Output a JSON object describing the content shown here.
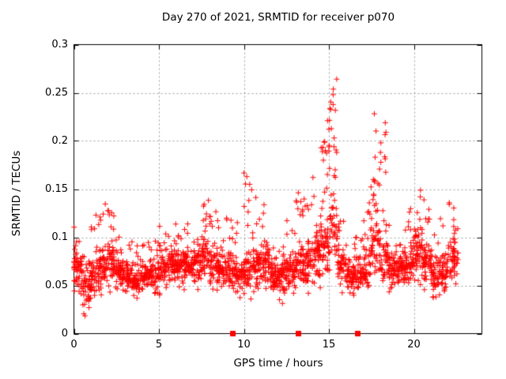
{
  "window": {
    "background": "#ffffff",
    "kind": "gnuplot-scatter-figure"
  },
  "chart_data": {
    "type": "scatter",
    "title": "Day 270 of 2021, SRMTID for receiver p070",
    "xlabel": "GPS time / hours",
    "ylabel": "SRMTID / TECUs",
    "xlim": [
      0,
      24
    ],
    "ylim": [
      0,
      0.3
    ],
    "xticks": [
      0,
      5,
      10,
      15,
      20
    ],
    "xtick_labels": [
      "0",
      "5",
      "10",
      "15",
      "20"
    ],
    "yticks": [
      0,
      0.05,
      0.1,
      0.15,
      0.2,
      0.25,
      0.3
    ],
    "ytick_labels": [
      "0",
      "0.05",
      "0.1",
      "0.15",
      "0.2",
      "0.25",
      "0.3"
    ],
    "grid": true,
    "grid_color": "#9a9a9a",
    "border_color": "#000000",
    "marker": {
      "shape": "plus",
      "color": "#ff0000",
      "size": 7,
      "stroke": 1
    },
    "flag_markers": {
      "shape": "filled-square",
      "color": "#ff0000",
      "size": 7,
      "y": 0,
      "times": [
        9.35,
        13.2,
        16.72
      ]
    },
    "data_time_range": [
      0,
      22.6
    ],
    "peak_value": 0.265,
    "peak_time": 15.0,
    "seed": 20210270,
    "envelope_bins_format": [
      "t_start",
      "t_end",
      "n_points",
      "min",
      "mode",
      "max",
      "tail_fraction",
      "tail_exponent"
    ],
    "envelope_bins": [
      [
        0.0,
        0.5,
        55,
        0.035,
        0.065,
        0.115,
        0.25,
        1.5
      ],
      [
        0.5,
        1.0,
        48,
        0.018,
        0.048,
        0.09,
        0.15,
        1.5
      ],
      [
        1.0,
        1.5,
        50,
        0.03,
        0.06,
        0.125,
        0.2,
        1.5
      ],
      [
        1.5,
        2.0,
        52,
        0.04,
        0.07,
        0.135,
        0.25,
        1.5
      ],
      [
        2.0,
        2.5,
        52,
        0.04,
        0.072,
        0.145,
        0.2,
        1.5
      ],
      [
        2.5,
        3.0,
        50,
        0.04,
        0.065,
        0.115,
        0.2,
        1.5
      ],
      [
        3.0,
        3.5,
        50,
        0.035,
        0.06,
        0.1,
        0.15,
        1.5
      ],
      [
        3.5,
        4.0,
        50,
        0.035,
        0.055,
        0.095,
        0.15,
        1.5
      ],
      [
        4.0,
        4.5,
        50,
        0.04,
        0.06,
        0.1,
        0.15,
        1.5
      ],
      [
        4.5,
        5.0,
        50,
        0.04,
        0.06,
        0.105,
        0.15,
        1.5
      ],
      [
        5.0,
        5.5,
        50,
        0.04,
        0.065,
        0.115,
        0.2,
        1.5
      ],
      [
        5.5,
        6.0,
        52,
        0.04,
        0.07,
        0.135,
        0.25,
        1.5
      ],
      [
        6.0,
        6.5,
        52,
        0.045,
        0.07,
        0.11,
        0.2,
        1.5
      ],
      [
        6.5,
        7.0,
        52,
        0.045,
        0.07,
        0.115,
        0.2,
        1.5
      ],
      [
        7.0,
        7.5,
        52,
        0.045,
        0.075,
        0.13,
        0.25,
        1.5
      ],
      [
        7.5,
        8.0,
        52,
        0.045,
        0.075,
        0.14,
        0.25,
        1.5
      ],
      [
        8.0,
        8.5,
        52,
        0.04,
        0.07,
        0.13,
        0.2,
        1.5
      ],
      [
        8.5,
        9.0,
        50,
        0.04,
        0.065,
        0.12,
        0.2,
        1.5
      ],
      [
        9.0,
        9.5,
        48,
        0.04,
        0.065,
        0.12,
        0.2,
        1.5
      ],
      [
        9.5,
        10.0,
        42,
        0.035,
        0.06,
        0.13,
        0.2,
        1.5
      ],
      [
        10.0,
        10.5,
        52,
        0.035,
        0.065,
        0.172,
        0.25,
        1.3
      ],
      [
        10.5,
        11.0,
        52,
        0.04,
        0.07,
        0.155,
        0.25,
        1.4
      ],
      [
        11.0,
        11.5,
        52,
        0.04,
        0.07,
        0.15,
        0.2,
        1.5
      ],
      [
        11.5,
        12.0,
        50,
        0.035,
        0.06,
        0.1,
        0.15,
        1.5
      ],
      [
        12.0,
        12.5,
        50,
        0.03,
        0.06,
        0.1,
        0.15,
        1.5
      ],
      [
        12.5,
        13.0,
        52,
        0.04,
        0.065,
        0.12,
        0.2,
        1.5
      ],
      [
        13.0,
        13.5,
        52,
        0.04,
        0.07,
        0.15,
        0.25,
        1.4
      ],
      [
        13.5,
        14.0,
        52,
        0.04,
        0.07,
        0.145,
        0.25,
        1.5
      ],
      [
        14.0,
        14.5,
        55,
        0.045,
        0.08,
        0.165,
        0.3,
        1.3
      ],
      [
        14.5,
        15.0,
        60,
        0.05,
        0.09,
        0.225,
        0.45,
        1.0
      ],
      [
        15.0,
        15.5,
        60,
        0.05,
        0.1,
        0.265,
        0.5,
        1.0
      ],
      [
        15.5,
        16.0,
        48,
        0.04,
        0.07,
        0.12,
        0.2,
        1.5
      ],
      [
        16.0,
        16.5,
        46,
        0.035,
        0.06,
        0.11,
        0.2,
        1.5
      ],
      [
        16.5,
        17.0,
        46,
        0.03,
        0.06,
        0.11,
        0.2,
        1.5
      ],
      [
        17.0,
        17.5,
        50,
        0.04,
        0.07,
        0.16,
        0.3,
        1.3
      ],
      [
        17.5,
        18.0,
        55,
        0.05,
        0.09,
        0.23,
        0.45,
        1.0
      ],
      [
        18.0,
        18.5,
        52,
        0.05,
        0.08,
        0.22,
        0.35,
        1.1
      ],
      [
        18.5,
        19.0,
        50,
        0.04,
        0.07,
        0.12,
        0.2,
        1.5
      ],
      [
        19.0,
        19.5,
        48,
        0.04,
        0.065,
        0.11,
        0.2,
        1.5
      ],
      [
        19.5,
        20.0,
        52,
        0.04,
        0.07,
        0.13,
        0.25,
        1.5
      ],
      [
        20.0,
        20.5,
        55,
        0.045,
        0.08,
        0.152,
        0.3,
        1.3
      ],
      [
        20.5,
        21.0,
        52,
        0.04,
        0.07,
        0.14,
        0.25,
        1.4
      ],
      [
        21.0,
        21.5,
        48,
        0.035,
        0.06,
        0.11,
        0.2,
        1.5
      ],
      [
        21.5,
        22.0,
        48,
        0.03,
        0.06,
        0.12,
        0.2,
        1.5
      ],
      [
        22.0,
        22.6,
        55,
        0.04,
        0.075,
        0.152,
        0.3,
        1.3
      ]
    ]
  }
}
